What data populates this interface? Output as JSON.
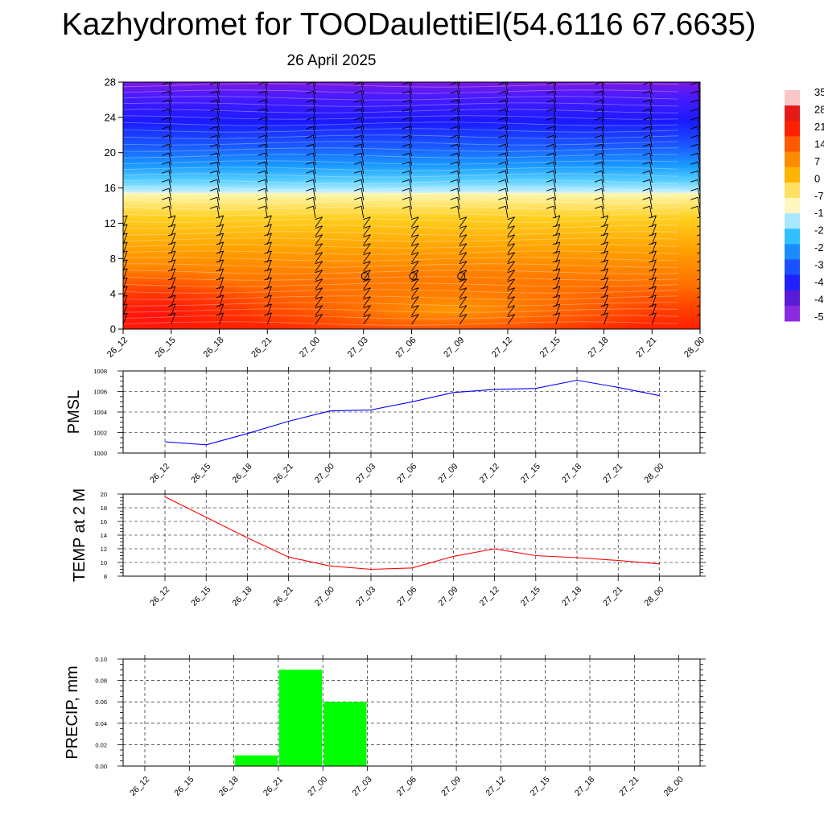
{
  "header": {
    "title": "Kazhydromet for TOODaulettiEl(54.6116 67.6635)",
    "date": "26 April 2025"
  },
  "colors": {
    "pmsl_line": "#0000ff",
    "temp_line": "#ff0000",
    "precip_bar": "#00ff00",
    "grid": "#000000"
  },
  "chart_data": [
    {
      "type": "heatmap",
      "title": "",
      "x_ticks": [
        "26_12",
        "26_15",
        "26_18",
        "26_21",
        "27_00",
        "27_03",
        "27_06",
        "27_09",
        "27_12",
        "27_15",
        "27_18",
        "27_21",
        "28_00"
      ],
      "ylim": [
        0,
        28
      ],
      "y_ticks": [
        0,
        4,
        8,
        12,
        16,
        20,
        24,
        28
      ],
      "colorbar_labels": [
        "35",
        "28",
        "21",
        "14",
        "7",
        "0",
        "-7",
        "-1",
        "-2",
        "-2",
        "-3",
        "-4",
        "-4",
        "-5"
      ],
      "colorbar_colors": [
        "#f8c8c8",
        "#e61919",
        "#ff2000",
        "#ff5a00",
        "#ff8c00",
        "#ffb400",
        "#ffe060",
        "#fff6c0",
        "#a8e8ff",
        "#30c0ff",
        "#1a8cff",
        "#1a50ff",
        "#2020ff",
        "#5a1ad8",
        "#8a2be2"
      ],
      "layers": [
        {
          "level": 0,
          "temp": 19
        },
        {
          "level": 4,
          "temp": 15
        },
        {
          "level": 8,
          "temp": 12
        },
        {
          "level": 11.8,
          "temp": 3
        },
        {
          "level": 12.4,
          "temp": -12
        },
        {
          "level": 16,
          "temp": -25
        },
        {
          "level": 20,
          "temp": -42
        },
        {
          "level": 24,
          "temp": -52
        },
        {
          "level": 28,
          "temp": -58
        }
      ],
      "calm_markers": [
        {
          "x": "27_03",
          "level": 6
        },
        {
          "x": "27_06",
          "level": 6
        },
        {
          "x": "27_09",
          "level": 6
        }
      ]
    },
    {
      "type": "line",
      "ylabel": "PMSL",
      "x": [
        "26_12",
        "26_15",
        "26_18",
        "26_21",
        "27_00",
        "27_03",
        "27_06",
        "27_09",
        "27_12",
        "27_15",
        "27_18",
        "27_21",
        "28_00"
      ],
      "series": [
        {
          "values": [
            1001.1,
            1000.8,
            1001.9,
            1003.1,
            1004.1,
            1004.2,
            1005.0,
            1005.9,
            1006.2,
            1006.3,
            1007.1,
            1006.4,
            1005.6
          ]
        }
      ],
      "ylim": [
        1000,
        1008
      ],
      "y_ticks": [
        1000,
        1002,
        1004,
        1006,
        1008
      ],
      "grid": true
    },
    {
      "type": "line",
      "ylabel": "TEMP at 2 M",
      "x": [
        "26_12",
        "26_15",
        "26_18",
        "26_21",
        "27_00",
        "27_03",
        "27_06",
        "27_09",
        "27_12",
        "27_15",
        "27_18",
        "27_21",
        "28_00"
      ],
      "series": [
        {
          "values": [
            19.6,
            16.6,
            13.6,
            10.8,
            9.5,
            9.0,
            9.2,
            10.9,
            12.0,
            11.0,
            10.7,
            10.3,
            9.8
          ]
        }
      ],
      "ylim": [
        8,
        20
      ],
      "y_ticks": [
        8,
        10,
        12,
        14,
        16,
        18,
        20
      ],
      "grid": true
    },
    {
      "type": "bar",
      "ylabel": "PRECIP, mm",
      "categories": [
        "26_12",
        "26_15",
        "26_18",
        "26_21",
        "27_00",
        "27_03",
        "27_06",
        "27_09",
        "27_12",
        "27_15",
        "27_18",
        "27_21",
        "28_00"
      ],
      "series": [
        {
          "values": [
            0,
            0,
            0,
            0.01,
            0.09,
            0.06,
            0,
            0,
            0,
            0,
            0,
            0,
            0
          ]
        }
      ],
      "ylim": [
        0,
        0.1
      ],
      "y_ticks": [
        "0.00",
        "0.02",
        "0.04",
        "0.06",
        "0.08",
        "0.10"
      ],
      "grid": true
    }
  ]
}
